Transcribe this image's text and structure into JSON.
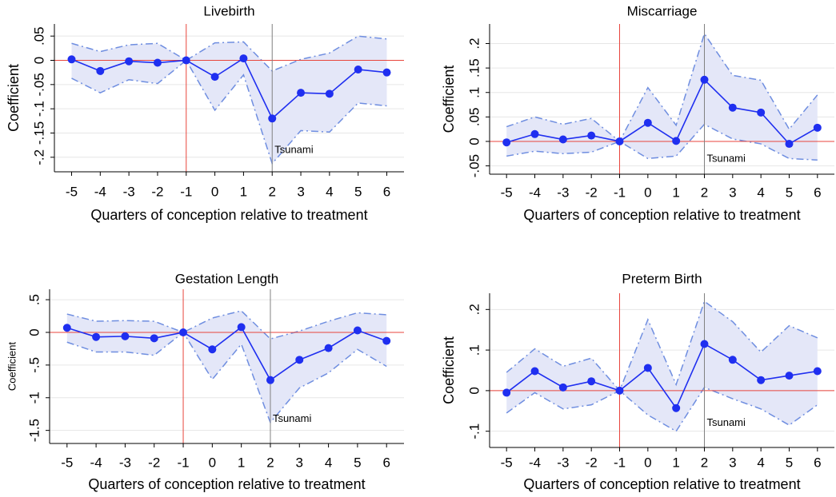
{
  "chart_data": [
    {
      "type": "line",
      "title": "Livebirth",
      "xlabel": "Quarters of conception relative to treatment",
      "ylabel": "Coefficient",
      "x": [
        -5,
        -4,
        -3,
        -2,
        -1,
        0,
        1,
        2,
        3,
        4,
        5,
        6
      ],
      "values": [
        0.002,
        -0.022,
        -0.002,
        -0.005,
        0,
        -0.034,
        0.004,
        -0.12,
        -0.067,
        -0.069,
        -0.019,
        -0.025
      ],
      "ci_upper": [
        0.035,
        0.018,
        0.032,
        0.035,
        0,
        0.036,
        0.038,
        -0.022,
        0.002,
        0.015,
        0.05,
        0.044
      ],
      "ci_lower": [
        -0.037,
        -0.067,
        -0.04,
        -0.048,
        0,
        -0.103,
        -0.03,
        -0.213,
        -0.145,
        -0.148,
        -0.088,
        -0.094
      ],
      "color": "#1f2ff0",
      "ci_color": "#6f8ee0",
      "band_color": "#e4e7f8",
      "xlim": [
        -5.6,
        6.6
      ],
      "xticks": [
        -5,
        -4,
        -3,
        -2,
        -1,
        0,
        1,
        2,
        3,
        4,
        5,
        6
      ],
      "ylim": [
        -0.23,
        0.075
      ],
      "yticks": [
        {
          "value": 0.05,
          "label": ".05"
        },
        0,
        {
          "value": -0.05,
          "label": "-.05"
        },
        {
          "value": -0.1,
          "label": "-.1"
        },
        {
          "value": -0.15,
          "label": "-.15"
        },
        {
          "value": -0.2,
          "label": "-.2"
        }
      ],
      "grid": true,
      "hline": {
        "value": 0,
        "color": "#e8453c"
      },
      "vlines": [
        {
          "value": -1,
          "color": "#e8453c"
        },
        {
          "value": 2,
          "color": "#808080"
        }
      ],
      "annotation": {
        "text": "Tsunami",
        "x": 2,
        "y": -0.186
      }
    },
    {
      "type": "line",
      "title": "Miscarriage",
      "xlabel": "Quarters of conception relative to treatment",
      "ylabel": "Coefficient",
      "x": [
        -5,
        -4,
        -3,
        -2,
        -1,
        0,
        1,
        2,
        3,
        4,
        5,
        6
      ],
      "values": [
        -0.002,
        0.015,
        0.004,
        0.012,
        0,
        0.038,
        0.001,
        0.126,
        0.069,
        0.059,
        -0.005,
        0.028
      ],
      "ci_upper": [
        0.03,
        0.05,
        0.035,
        0.047,
        0,
        0.11,
        0.033,
        0.22,
        0.135,
        0.125,
        0.025,
        0.095
      ],
      "ci_lower": [
        -0.03,
        -0.02,
        -0.025,
        -0.022,
        0,
        -0.035,
        -0.03,
        0.035,
        0.005,
        -0.005,
        -0.035,
        -0.038
      ],
      "color": "#1f2ff0",
      "ci_color": "#6f8ee0",
      "band_color": "#e4e7f8",
      "xlim": [
        -5.6,
        6.6
      ],
      "xticks": [
        -5,
        -4,
        -3,
        -2,
        -1,
        0,
        1,
        2,
        3,
        4,
        5,
        6
      ],
      "ylim": [
        -0.067,
        0.24
      ],
      "yticks": [
        {
          "value": 0.2,
          "label": ".2"
        },
        {
          "value": 0.15,
          "label": ".15"
        },
        {
          "value": 0.1,
          "label": ".1"
        },
        {
          "value": 0.05,
          "label": ".05"
        },
        0,
        {
          "value": -0.05,
          "label": "-.05"
        }
      ],
      "grid": true,
      "hline": {
        "value": 0,
        "color": "#e8453c"
      },
      "vlines": [
        {
          "value": -1,
          "color": "#e8453c"
        },
        {
          "value": 2,
          "color": "#808080"
        }
      ],
      "annotation": {
        "text": "Tsunami",
        "x": 2,
        "y": -0.036
      }
    },
    {
      "type": "line",
      "title": "Gestation Length",
      "xlabel": "Quarters of conception relative to treatment",
      "ylabel": "Coefficient",
      "x": [
        -5,
        -4,
        -3,
        -2,
        -1,
        0,
        1,
        2,
        3,
        4,
        5,
        6
      ],
      "values": [
        0.07,
        -0.07,
        -0.06,
        -0.09,
        0,
        -0.26,
        0.08,
        -0.73,
        -0.42,
        -0.24,
        0.03,
        -0.13
      ],
      "ci_upper": [
        0.28,
        0.17,
        0.18,
        0.17,
        0,
        0.22,
        0.33,
        -0.1,
        0.02,
        0.17,
        0.3,
        0.27
      ],
      "ci_lower": [
        -0.15,
        -0.3,
        -0.3,
        -0.35,
        0,
        -0.72,
        -0.18,
        -1.38,
        -0.85,
        -0.62,
        -0.26,
        -0.52
      ],
      "color": "#1f2ff0",
      "ci_color": "#6f8ee0",
      "band_color": "#e4e7f8",
      "xlim": [
        -5.6,
        6.6
      ],
      "xticks": [
        -5,
        -4,
        -3,
        -2,
        -1,
        0,
        1,
        2,
        3,
        4,
        5,
        6
      ],
      "ylim": [
        -1.7,
        0.66
      ],
      "yticks": [
        {
          "value": 0.5,
          "label": ".5"
        },
        0,
        {
          "value": -0.5,
          "label": "-.5"
        },
        -1,
        -1.5
      ],
      "grid": true,
      "hline": {
        "value": 0,
        "color": "#e8453c"
      },
      "vlines": [
        {
          "value": -1,
          "color": "#e8453c"
        },
        {
          "value": 2,
          "color": "#808080"
        }
      ],
      "annotation": {
        "text": "Tsunami",
        "x": 2,
        "y": -1.33
      }
    },
    {
      "type": "line",
      "title": "Preterm Birth",
      "xlabel": "Quarters of conception relative to treatment",
      "ylabel": "Coefficient",
      "x": [
        -5,
        -4,
        -3,
        -2,
        -1,
        0,
        1,
        2,
        3,
        4,
        5,
        6
      ],
      "values": [
        -0.005,
        0.048,
        0.008,
        0.023,
        0,
        0.056,
        -0.043,
        0.115,
        0.076,
        0.026,
        0.037,
        0.048
      ],
      "ci_upper": [
        0.045,
        0.103,
        0.06,
        0.08,
        0,
        0.175,
        0.015,
        0.22,
        0.17,
        0.095,
        0.16,
        0.13
      ],
      "ci_lower": [
        -0.055,
        -0.005,
        -0.045,
        -0.035,
        0,
        -0.06,
        -0.1,
        0.008,
        -0.02,
        -0.045,
        -0.085,
        -0.035
      ],
      "color": "#1f2ff0",
      "ci_color": "#6f8ee0",
      "band_color": "#e4e7f8",
      "xlim": [
        -5.6,
        6.6
      ],
      "xticks": [
        -5,
        -4,
        -3,
        -2,
        -1,
        0,
        1,
        2,
        3,
        4,
        5,
        6
      ],
      "ylim": [
        -0.14,
        0.24
      ],
      "yticks": [
        {
          "value": 0.2,
          "label": ".2"
        },
        {
          "value": 0.1,
          "label": ".1"
        },
        0,
        {
          "value": -0.1,
          "label": "-.1"
        }
      ],
      "grid": true,
      "hline": {
        "value": 0,
        "color": "#e8453c"
      },
      "vlines": [
        {
          "value": -1,
          "color": "#e8453c"
        },
        {
          "value": 2,
          "color": "#808080"
        }
      ],
      "annotation": {
        "text": "Tsunami",
        "x": 2,
        "y": -0.08
      }
    }
  ]
}
